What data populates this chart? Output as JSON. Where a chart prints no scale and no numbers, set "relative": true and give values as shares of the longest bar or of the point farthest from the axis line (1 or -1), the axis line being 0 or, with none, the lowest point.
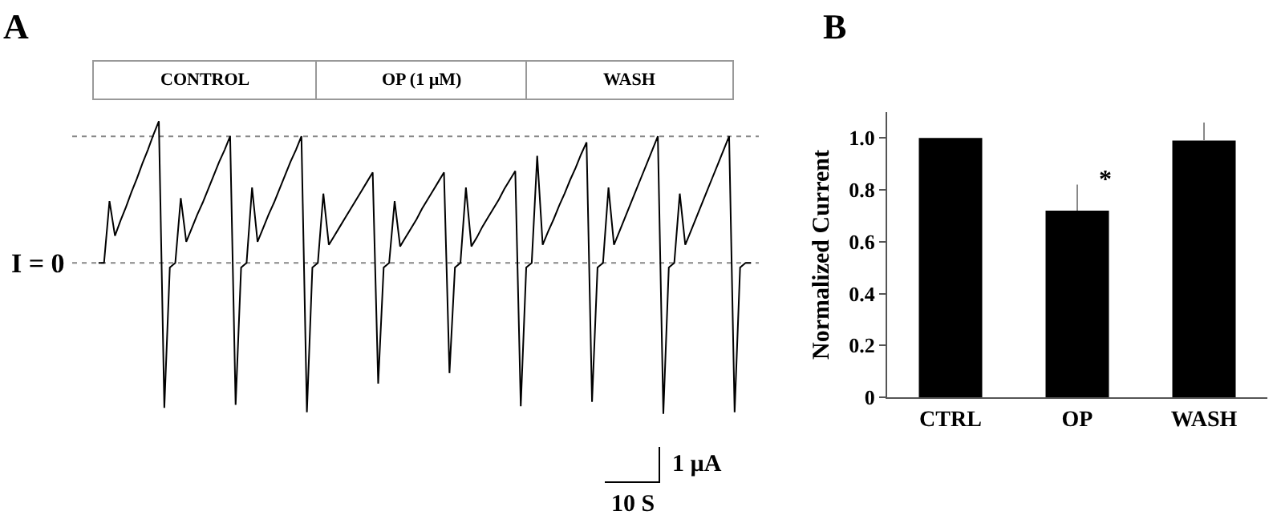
{
  "chart_data": [
    {
      "type": "line",
      "title": "A",
      "relative": true,
      "color": "#000000",
      "categories": [
        null,
        null,
        null,
        null,
        null,
        null,
        null,
        null,
        null,
        null,
        null,
        null,
        null,
        null,
        null,
        null,
        null,
        null,
        null,
        null,
        null,
        null,
        null,
        null,
        null,
        null,
        null,
        null,
        null,
        null,
        null,
        null,
        null,
        null,
        null,
        null,
        null,
        null,
        null,
        null,
        null,
        null,
        null,
        null,
        null,
        null,
        null,
        null,
        null,
        null,
        null,
        null,
        null,
        null,
        null,
        null,
        null,
        null,
        null,
        null,
        null,
        null,
        null,
        null,
        null,
        null,
        null,
        null,
        null,
        null,
        null,
        null,
        null,
        null,
        null,
        null,
        null,
        null,
        null,
        null,
        null,
        null,
        null,
        null,
        null,
        null,
        null,
        null,
        null,
        null,
        null,
        null,
        null,
        null,
        null,
        null,
        null,
        null,
        null,
        null,
        null,
        null,
        null,
        null,
        null,
        null,
        null,
        null,
        null,
        null,
        null,
        null,
        null,
        null,
        null,
        null,
        null,
        null,
        null,
        null
      ],
      "values": [
        0,
        0,
        0.41,
        0.18,
        0.28,
        0.37,
        0.47,
        0.56,
        0.66,
        0.75,
        0.85,
        0.94,
        -0.96,
        -0.03,
        0,
        0.43,
        0.14,
        0.23,
        0.32,
        0.4,
        0.49,
        0.58,
        0.67,
        0.75,
        0.84,
        -0.94,
        -0.03,
        0,
        0.5,
        0.14,
        0.23,
        0.32,
        0.4,
        0.49,
        0.58,
        0.67,
        0.75,
        0.84,
        -0.99,
        -0.03,
        0,
        0.46,
        0.12,
        0.18,
        0.24,
        0.3,
        0.36,
        0.42,
        0.48,
        0.54,
        0.6,
        -0.8,
        -0.03,
        0,
        0.41,
        0.11,
        0.17,
        0.23,
        0.29,
        0.36,
        0.42,
        0.48,
        0.54,
        0.6,
        -0.73,
        -0.03,
        0,
        0.5,
        0.11,
        0.17,
        0.24,
        0.3,
        0.36,
        0.42,
        0.49,
        0.55,
        0.61,
        -0.95,
        -0.03,
        0,
        0.71,
        0.12,
        0.21,
        0.29,
        0.38,
        0.46,
        0.55,
        0.63,
        0.72,
        0.8,
        -0.92,
        -0.03,
        0,
        0.5,
        0.12,
        0.21,
        0.3,
        0.39,
        0.48,
        0.57,
        0.66,
        0.75,
        0.84,
        -1.0,
        -0.03,
        0,
        0.46,
        0.12,
        0.21,
        0.3,
        0.39,
        0.48,
        0.57,
        0.66,
        0.75,
        0.84,
        -0.99,
        -0.03,
        0,
        0
      ],
      "ref_lines": [
        {
          "axis": "y",
          "value": 0,
          "label": "I = 0",
          "color": "#888888",
          "line_style": "dotted"
        },
        {
          "axis": "y",
          "value": 0.84,
          "label": null,
          "color": "#888888",
          "line_style": "dotted"
        }
      ],
      "annotations": [
        "CONTROL",
        "OP (1 µM)",
        "WASH",
        "1 µA",
        "10 S"
      ],
      "legend": false
    },
    {
      "type": "bar",
      "title": "B",
      "categories": [
        "CTRL",
        "OP",
        "WASH"
      ],
      "values": [
        1.0,
        0.72,
        0.99
      ],
      "errors": [
        null,
        [
          0.72,
          0.82
        ],
        [
          0.99,
          1.06
        ]
      ],
      "color": "#000000",
      "ylabel": "Normalized Current",
      "ylim": [
        0,
        1.1
      ],
      "yticks": [
        0,
        0.2,
        0.4,
        0.6,
        0.8,
        {
          "value": 1.0,
          "label": "1.0"
        }
      ],
      "annotations": [
        "*"
      ],
      "legend": false
    }
  ]
}
